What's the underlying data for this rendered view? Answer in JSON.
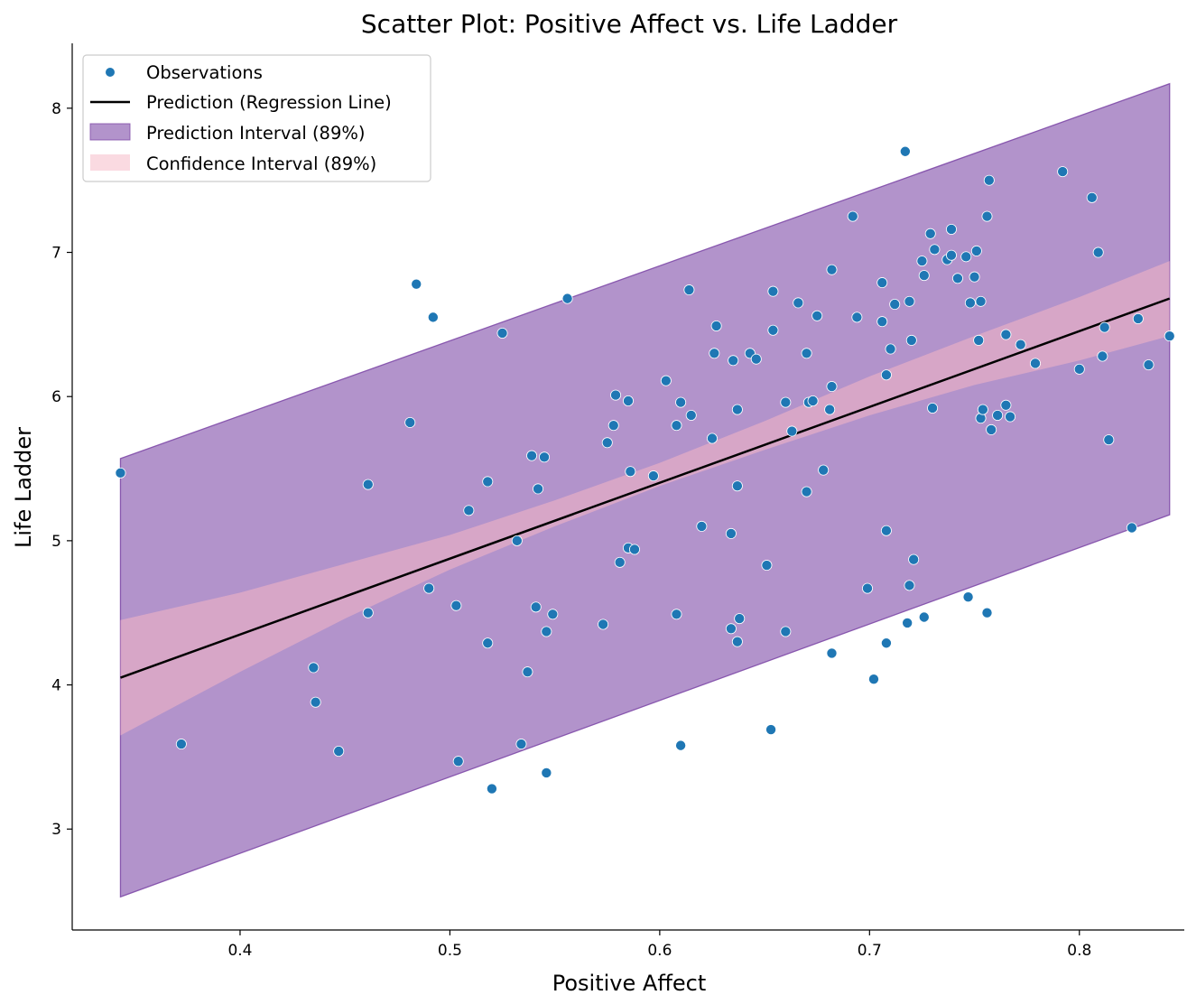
{
  "chart_data": {
    "type": "scatter",
    "title": "Scatter Plot: Positive Affect vs. Life Ladder",
    "xlabel": "Positive Affect",
    "ylabel": "Life Ladder",
    "xlim": [
      0.32,
      0.85
    ],
    "ylim": [
      2.3,
      8.45
    ],
    "xticks": [
      0.4,
      0.5,
      0.6,
      0.7,
      0.8
    ],
    "yticks": [
      3,
      4,
      5,
      6,
      7,
      8
    ],
    "xtick_labels": [
      "0.4",
      "0.5",
      "0.6",
      "0.7",
      "0.8"
    ],
    "ytick_labels": [
      "3",
      "4",
      "5",
      "6",
      "7",
      "8"
    ],
    "grid": false,
    "legend_position": "top-left",
    "legend": [
      {
        "label": "Observations",
        "kind": "marker"
      },
      {
        "label": "Prediction (Regression Line)",
        "kind": "line"
      },
      {
        "label": "Prediction Interval (89%)",
        "kind": "band-purple"
      },
      {
        "label": "Confidence Interval (89%)",
        "kind": "band-pink"
      }
    ],
    "colors": {
      "points": "#1f77b4",
      "line": "#000000",
      "prediction_band": "#7f4ba8",
      "confidence_band": "#f6b6c4"
    },
    "regression_line": {
      "x": [
        0.343,
        0.843
      ],
      "y": [
        4.05,
        6.68
      ]
    },
    "prediction_interval": {
      "x": [
        0.343,
        0.843
      ],
      "lower": [
        2.53,
        5.18
      ],
      "upper": [
        5.57,
        8.17
      ]
    },
    "confidence_interval": {
      "x": [
        0.343,
        0.4,
        0.45,
        0.5,
        0.55,
        0.6,
        0.65,
        0.7,
        0.75,
        0.8,
        0.843
      ],
      "lower": [
        3.65,
        4.09,
        4.46,
        4.8,
        5.1,
        5.38,
        5.63,
        5.87,
        6.08,
        6.25,
        6.42
      ],
      "upper": [
        4.45,
        4.64,
        4.84,
        5.04,
        5.28,
        5.54,
        5.83,
        6.14,
        6.42,
        6.69,
        6.94
      ]
    },
    "points": [
      [
        0.343,
        5.47
      ],
      [
        0.372,
        3.59
      ],
      [
        0.435,
        4.12
      ],
      [
        0.436,
        3.88
      ],
      [
        0.447,
        3.54
      ],
      [
        0.461,
        5.39
      ],
      [
        0.461,
        4.5
      ],
      [
        0.481,
        5.82
      ],
      [
        0.484,
        6.78
      ],
      [
        0.49,
        4.67
      ],
      [
        0.492,
        6.55
      ],
      [
        0.503,
        4.55
      ],
      [
        0.504,
        3.47
      ],
      [
        0.509,
        5.21
      ],
      [
        0.518,
        5.41
      ],
      [
        0.518,
        4.29
      ],
      [
        0.52,
        3.28
      ],
      [
        0.525,
        6.44
      ],
      [
        0.532,
        5.0
      ],
      [
        0.534,
        3.59
      ],
      [
        0.537,
        4.09
      ],
      [
        0.539,
        5.59
      ],
      [
        0.541,
        4.54
      ],
      [
        0.542,
        5.36
      ],
      [
        0.545,
        5.58
      ],
      [
        0.546,
        4.37
      ],
      [
        0.546,
        3.39
      ],
      [
        0.549,
        4.49
      ],
      [
        0.556,
        6.68
      ],
      [
        0.573,
        4.42
      ],
      [
        0.575,
        5.68
      ],
      [
        0.578,
        5.8
      ],
      [
        0.579,
        6.01
      ],
      [
        0.581,
        4.85
      ],
      [
        0.585,
        4.95
      ],
      [
        0.585,
        5.97
      ],
      [
        0.586,
        5.48
      ],
      [
        0.588,
        4.94
      ],
      [
        0.597,
        5.45
      ],
      [
        0.603,
        6.11
      ],
      [
        0.608,
        5.8
      ],
      [
        0.608,
        4.49
      ],
      [
        0.61,
        5.96
      ],
      [
        0.61,
        3.58
      ],
      [
        0.614,
        6.74
      ],
      [
        0.615,
        5.87
      ],
      [
        0.62,
        5.1
      ],
      [
        0.625,
        5.71
      ],
      [
        0.626,
        6.3
      ],
      [
        0.627,
        6.49
      ],
      [
        0.634,
        5.05
      ],
      [
        0.634,
        4.39
      ],
      [
        0.635,
        6.25
      ],
      [
        0.637,
        5.91
      ],
      [
        0.637,
        5.38
      ],
      [
        0.637,
        4.3
      ],
      [
        0.638,
        4.46
      ],
      [
        0.643,
        6.3
      ],
      [
        0.646,
        6.26
      ],
      [
        0.651,
        4.83
      ],
      [
        0.653,
        3.69
      ],
      [
        0.654,
        6.73
      ],
      [
        0.654,
        6.46
      ],
      [
        0.66,
        5.96
      ],
      [
        0.66,
        4.37
      ],
      [
        0.663,
        5.76
      ],
      [
        0.666,
        6.65
      ],
      [
        0.67,
        5.34
      ],
      [
        0.67,
        6.3
      ],
      [
        0.671,
        5.96
      ],
      [
        0.673,
        5.97
      ],
      [
        0.675,
        6.56
      ],
      [
        0.678,
        5.49
      ],
      [
        0.681,
        5.91
      ],
      [
        0.682,
        6.88
      ],
      [
        0.682,
        6.07
      ],
      [
        0.682,
        4.22
      ],
      [
        0.692,
        7.25
      ],
      [
        0.694,
        6.55
      ],
      [
        0.699,
        4.67
      ],
      [
        0.702,
        4.04
      ],
      [
        0.706,
        6.79
      ],
      [
        0.706,
        6.52
      ],
      [
        0.708,
        6.15
      ],
      [
        0.708,
        5.07
      ],
      [
        0.708,
        4.29
      ],
      [
        0.71,
        6.33
      ],
      [
        0.712,
        6.64
      ],
      [
        0.717,
        7.7
      ],
      [
        0.718,
        4.43
      ],
      [
        0.719,
        6.66
      ],
      [
        0.719,
        4.69
      ],
      [
        0.72,
        6.39
      ],
      [
        0.721,
        4.87
      ],
      [
        0.725,
        6.94
      ],
      [
        0.726,
        6.84
      ],
      [
        0.726,
        4.47
      ],
      [
        0.729,
        7.13
      ],
      [
        0.73,
        5.92
      ],
      [
        0.731,
        7.02
      ],
      [
        0.737,
        6.95
      ],
      [
        0.739,
        7.16
      ],
      [
        0.739,
        6.98
      ],
      [
        0.742,
        6.82
      ],
      [
        0.746,
        6.97
      ],
      [
        0.747,
        4.61
      ],
      [
        0.748,
        6.65
      ],
      [
        0.75,
        6.83
      ],
      [
        0.751,
        7.01
      ],
      [
        0.752,
        6.39
      ],
      [
        0.753,
        6.66
      ],
      [
        0.753,
        5.85
      ],
      [
        0.754,
        5.91
      ],
      [
        0.756,
        7.25
      ],
      [
        0.756,
        4.5
      ],
      [
        0.757,
        7.5
      ],
      [
        0.758,
        5.77
      ],
      [
        0.761,
        5.87
      ],
      [
        0.765,
        5.94
      ],
      [
        0.765,
        6.43
      ],
      [
        0.767,
        5.86
      ],
      [
        0.772,
        6.36
      ],
      [
        0.779,
        6.23
      ],
      [
        0.792,
        7.56
      ],
      [
        0.8,
        6.19
      ],
      [
        0.806,
        7.38
      ],
      [
        0.809,
        7.0
      ],
      [
        0.811,
        6.28
      ],
      [
        0.812,
        6.48
      ],
      [
        0.814,
        5.7
      ],
      [
        0.825,
        5.09
      ],
      [
        0.828,
        6.54
      ],
      [
        0.833,
        6.22
      ],
      [
        0.843,
        6.42
      ]
    ]
  }
}
